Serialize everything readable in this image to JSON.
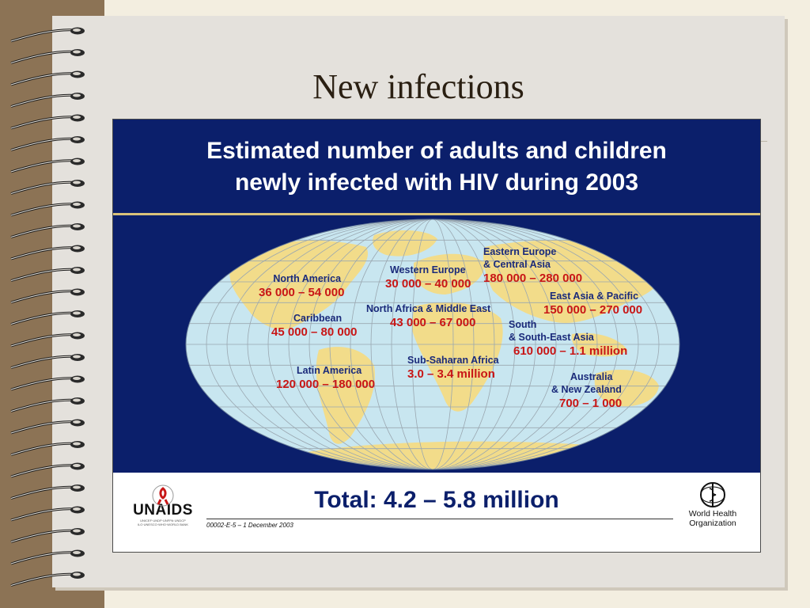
{
  "slide": {
    "title": "New infections"
  },
  "poster": {
    "heading_line1": "Estimated number of adults and children",
    "heading_line2": "newly infected with HIV during 2003",
    "regions": [
      {
        "name_line1": "North America",
        "name_line2": "",
        "value": "36 000 – 54 000"
      },
      {
        "name_line1": "Caribbean",
        "name_line2": "",
        "value": "45 000 – 80 000"
      },
      {
        "name_line1": "Latin America",
        "name_line2": "",
        "value": "120 000 – 180 000"
      },
      {
        "name_line1": "Western Europe",
        "name_line2": "",
        "value": "30 000 – 40 000"
      },
      {
        "name_line1": "North Africa & Middle East",
        "name_line2": "",
        "value": "43 000 – 67 000"
      },
      {
        "name_line1": "Sub-Saharan Africa",
        "name_line2": "",
        "value": "3.0 – 3.4 million"
      },
      {
        "name_line1": "Eastern Europe",
        "name_line2": "& Central Asia",
        "value": "180 000 – 280 000"
      },
      {
        "name_line1": "East Asia & Pacific",
        "name_line2": "",
        "value": "150 000 – 270 000"
      },
      {
        "name_line1": "South",
        "name_line2": "& South-East Asia",
        "value": "610 000 – 1.1 million"
      },
      {
        "name_line1": "Australia",
        "name_line2": "& New Zealand",
        "value": "700 – 1 000"
      }
    ],
    "total": "Total: 4.2 – 5.8 million",
    "reference": "00002-E-5 – 1 December 2003",
    "logo_left": "UNAIDS",
    "logo_left_sub": "UNICEF·UNDP·UNFPA·UNDCP ILO·UNESCO·WHO·WORLD BANK",
    "logo_right_line1": "World Health",
    "logo_right_line2": "Organization"
  },
  "colors": {
    "poster_navy": "#0b1f6b",
    "value_red": "#c81616",
    "label_blue": "#1a2a7a",
    "ocean": "#c8e6f0",
    "land": "#f2dc8a"
  }
}
